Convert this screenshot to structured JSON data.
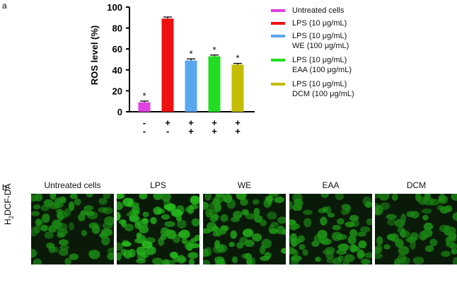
{
  "panel_a": {
    "letter": "a"
  },
  "panel_b": {
    "letter": "b",
    "ylabel_prefix": "H",
    "ylabel_sub": "2",
    "ylabel_suffix": "DCF-DA",
    "conditions": [
      "Untreated cells",
      "LPS",
      "WE",
      "EAA",
      "DCM"
    ],
    "image_brightness": [
      0.55,
      0.95,
      0.7,
      0.6,
      0.5
    ]
  },
  "chart_data": {
    "type": "bar",
    "ylabel": "ROS level (%)",
    "ylim": [
      0,
      100
    ],
    "yticks": [
      0,
      20,
      40,
      60,
      80,
      100
    ],
    "values": [
      9,
      89,
      49,
      53,
      45
    ],
    "errors": [
      1.2,
      1.5,
      1.5,
      1.2,
      1.2
    ],
    "colors": [
      "#e040e0",
      "#ee1111",
      "#5aa7ef",
      "#22dd22",
      "#c4bd00"
    ],
    "significance": [
      "*",
      "",
      "*",
      "*",
      "*"
    ],
    "treatment_rows": [
      [
        "-",
        "+",
        "+",
        "+",
        "+"
      ],
      [
        "-",
        "-",
        "+",
        "+",
        "+"
      ]
    ],
    "legend": [
      {
        "lines": [
          "Untreated cells"
        ],
        "color": "#e040e0"
      },
      {
        "lines": [
          "LPS (10 μg/mL)"
        ],
        "color": "#ee1111"
      },
      {
        "lines": [
          "LPS (10 μg/mL)",
          "WE (100 μg/mL)"
        ],
        "color": "#5aa7ef"
      },
      {
        "lines": [
          "LPS (10 μg/mL)",
          "EAA (100 μg/mL)"
        ],
        "color": "#22dd22"
      },
      {
        "lines": [
          "LPS (10 μg/mL)",
          "DCM (100 μg/mL)"
        ],
        "color": "#c4bd00"
      }
    ]
  }
}
